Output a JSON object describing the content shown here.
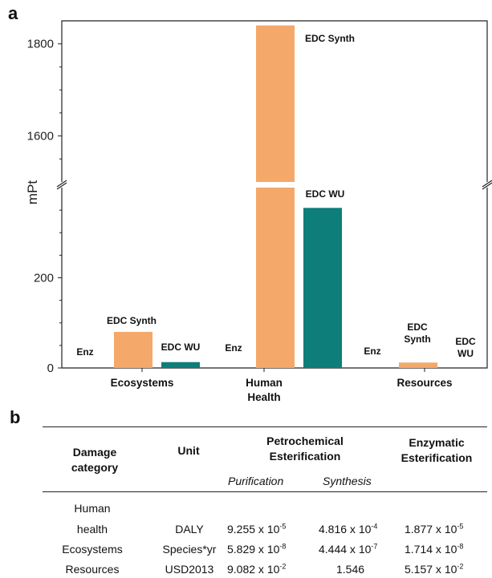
{
  "panel_a_label": "a",
  "panel_b_label": "b",
  "chart_data": {
    "type": "bar",
    "ylabel": "mPt",
    "y_axis_broken": true,
    "lower_segment_range": [
      0,
      400
    ],
    "upper_segment_range": [
      1500,
      1850
    ],
    "yticks": [
      0,
      200,
      1600,
      1800
    ],
    "categories": [
      "Ecosystems",
      "Human Health",
      "Resources"
    ],
    "category_labels": [
      [
        "Ecosystems"
      ],
      [
        "Human",
        "Health"
      ],
      [
        "Resources"
      ]
    ],
    "series": [
      {
        "name": "Enz",
        "color": "#f4a86a",
        "values": [
          0,
          0,
          0
        ]
      },
      {
        "name": "EDC Synth",
        "color": "#f4a86a",
        "values": [
          80,
          1840,
          12
        ]
      },
      {
        "name": "EDC WU",
        "color": "#0e7e7a",
        "values": [
          13,
          355,
          0
        ]
      }
    ],
    "bar_labels": [
      {
        "category": 0,
        "series": 0,
        "lines": [
          "Enz"
        ]
      },
      {
        "category": 0,
        "series": 1,
        "lines": [
          "EDC Synth"
        ]
      },
      {
        "category": 0,
        "series": 2,
        "lines": [
          "EDC WU"
        ]
      },
      {
        "category": 1,
        "series": 0,
        "lines": [
          "Enz"
        ]
      },
      {
        "category": 1,
        "series": 1,
        "lines": [
          "EDC Synth"
        ]
      },
      {
        "category": 1,
        "series": 2,
        "lines": [
          "EDC WU"
        ]
      },
      {
        "category": 2,
        "series": 0,
        "lines": [
          "Enz"
        ]
      },
      {
        "category": 2,
        "series": 1,
        "lines": [
          "EDC",
          "Synth"
        ]
      },
      {
        "category": 2,
        "series": 2,
        "lines": [
          "EDC",
          "WU"
        ]
      }
    ]
  },
  "table": {
    "col_damage_line1": "Damage",
    "col_damage_line2": "category",
    "col_unit": "Unit",
    "col_petro_line1": "Petrochemical",
    "col_petro_line2": "Esterification",
    "col_enz_line1": "Enzymatic",
    "col_enz_line2": "Esterification",
    "sub_purification": "Purification",
    "sub_synthesis": "Synthesis",
    "rows": [
      {
        "category_line1": "Human",
        "category_line2": "health",
        "unit": "DALY",
        "purification": {
          "base": "9.255 x 10",
          "exp": "-5"
        },
        "synthesis": {
          "base": "4.816 x 10",
          "exp": "-4"
        },
        "enzymatic": {
          "base": "1.877 x 10",
          "exp": "-5"
        }
      },
      {
        "category_line1": "Ecosystems",
        "category_line2": "",
        "unit": "Species*yr",
        "purification": {
          "base": "5.829 x 10",
          "exp": "-8"
        },
        "synthesis": {
          "base": "4.444 x 10",
          "exp": "-7"
        },
        "enzymatic": {
          "base": "1.714 x 10",
          "exp": "-8"
        }
      },
      {
        "category_line1": "Resources",
        "category_line2": "",
        "unit": "USD2013",
        "purification": {
          "base": "9.082 x 10",
          "exp": "-2"
        },
        "synthesis": {
          "base": "1.546",
          "exp": ""
        },
        "enzymatic": {
          "base": "5.157 x 10",
          "exp": "-2"
        }
      }
    ]
  }
}
